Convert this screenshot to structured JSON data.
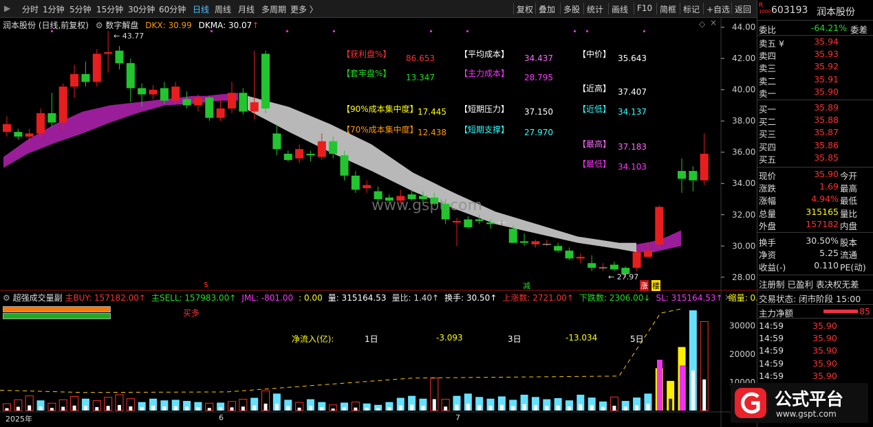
{
  "toolbar": {
    "left": [
      "分时",
      "1分钟",
      "5分钟",
      "15分钟",
      "30分钟",
      "60分钟",
      "日线",
      "周线",
      "月线",
      "多周期",
      "更多 〉"
    ],
    "active_index": 6,
    "right": [
      "复权",
      "叠加",
      "多股",
      "统计",
      "画线",
      "F10",
      "简框",
      "标记",
      "+自选",
      "返回"
    ]
  },
  "main": {
    "stock_title": "润本股份 (日线,前复权)",
    "indicator_name": "数字解盘",
    "dkx_label": "DKX: 30.99",
    "dkma_label": "DKMA: 30.07",
    "high_marker": "43.77",
    "low_marker": "27.97",
    "watermark": "www.gspt.com",
    "price_axis": [
      "44.00",
      "42.00",
      "40.00",
      "38.00",
      "36.00",
      "34.00",
      "32.00",
      "30.00",
      "28.00"
    ],
    "price_range": [
      27.2,
      44.6
    ],
    "tags": {
      "dollar": "$",
      "jian": "减",
      "zhang": "涨",
      "lou": "楼"
    },
    "info": [
      {
        "label": "【获利盘%】",
        "value": "86.653",
        "lc": "#ff3030",
        "vc": "#ff3030"
      },
      {
        "label": "【套牢盘%】",
        "value": "13.347",
        "lc": "#22dd22",
        "vc": "#22dd22"
      },
      {
        "label": "【90%成本集中度】",
        "value": "17.445",
        "lc": "#ffff00",
        "vc": "#ffff00"
      },
      {
        "label": "【70%成本集中度】",
        "value": "12.438",
        "lc": "#ff9900",
        "vc": "#ff9900"
      },
      {
        "label": "【平均成本】",
        "value": "34.437",
        "lc": "#ffffff",
        "vc": "#ff66ff"
      },
      {
        "label": "【主力成本】",
        "value": "28.795",
        "lc": "#ff33ff",
        "vc": "#ff33ff"
      },
      {
        "label": "【短期压力】",
        "value": "37.150",
        "lc": "#ffffff",
        "vc": "#ffffff"
      },
      {
        "label": "【短期支撑】",
        "value": "27.970",
        "lc": "#33ffff",
        "vc": "#33ffff"
      },
      {
        "label": "【中价】",
        "value": "35.643",
        "lc": "#ffffff",
        "vc": "#ffffff"
      },
      {
        "label": "【近高】",
        "value": "37.407",
        "lc": "#ffffff",
        "vc": "#ffffff"
      },
      {
        "label": "【近低】",
        "value": "34.137",
        "lc": "#33ffff",
        "vc": "#33ffff"
      },
      {
        "label": "【最高】",
        "value": "37.183",
        "lc": "#ff66ff",
        "vc": "#ff66ff"
      },
      {
        "label": "【最低】",
        "value": "34.103",
        "lc": "#ff33ff",
        "vc": "#ff33ff"
      }
    ]
  },
  "volume": {
    "indicator_name": "超强成交量副",
    "header": [
      {
        "text": "主BUY: 157182.00↑",
        "color": "#ff3030"
      },
      {
        "text": "主SELL: 157983.00↑",
        "color": "#22dd22"
      },
      {
        "text": "JML: -801.00",
        "color": "#ff33ff"
      },
      {
        "text": ": 0.00",
        "color": "#ffff00"
      },
      {
        "text": "量: 315164.53",
        "color": "#ffffff"
      },
      {
        "text": "量比: 1.40↑",
        "color": "#dddddd"
      },
      {
        "text": "换手: 30.50↑",
        "color": "#ffffff"
      },
      {
        "text": "上涨数: 2721.00↑",
        "color": "#ff3030"
      },
      {
        "text": "下跌数: 2306.00↓",
        "color": "#22dd22"
      },
      {
        "text": "SL: 315164.53↑",
        "color": "#ff33ff"
      },
      {
        "text": "缩量: 0.0",
        "color": "#ffff00"
      }
    ],
    "buy_more": "买多",
    "netflow_label": "净流入(亿):",
    "netflow": [
      {
        "period": "1日",
        "value": "-3.093"
      },
      {
        "period": "3日",
        "value": "-13.034"
      },
      {
        "period": "5日",
        "value": ""
      }
    ],
    "axis": [
      "30000",
      "20000",
      "10000"
    ],
    "range": [
      0,
      36000
    ]
  },
  "dates": [
    "2025年",
    "6",
    "7"
  ],
  "chart_data": {
    "type": "candlestick",
    "ohlc": [
      [
        37.3,
        38.3,
        37.0,
        37.8
      ],
      [
        37.3,
        37.5,
        36.8,
        37.0
      ],
      [
        37.0,
        37.5,
        36.5,
        37.2
      ],
      [
        37.2,
        38.8,
        36.9,
        38.5
      ],
      [
        38.5,
        39.8,
        37.6,
        37.9
      ],
      [
        37.9,
        40.4,
        37.4,
        40.2
      ],
      [
        40.2,
        41.6,
        39.5,
        41.0
      ],
      [
        41.0,
        41.8,
        40.2,
        40.5
      ],
      [
        40.5,
        42.6,
        40.2,
        42.3
      ],
      [
        42.3,
        43.77,
        41.1,
        42.4
      ],
      [
        42.5,
        42.8,
        41.3,
        41.7
      ],
      [
        41.7,
        42.0,
        39.2,
        40.1
      ],
      [
        40.1,
        40.4,
        38.9,
        39.7
      ],
      [
        39.7,
        40.3,
        39.4,
        40.0
      ],
      [
        40.1,
        40.5,
        39.1,
        39.3
      ],
      [
        39.3,
        40.5,
        39.1,
        40.2
      ],
      [
        39.4,
        39.9,
        38.8,
        39.0
      ],
      [
        39.0,
        39.7,
        38.6,
        39.5
      ],
      [
        39.5,
        39.6,
        38.0,
        38.2
      ],
      [
        38.2,
        39.5,
        38.0,
        38.8
      ],
      [
        38.8,
        40.5,
        38.5,
        39.8
      ],
      [
        39.8,
        40.1,
        38.4,
        38.6
      ],
      [
        38.6,
        42.5,
        38.1,
        39.2
      ],
      [
        42.3,
        42.5,
        38.5,
        38.8
      ],
      [
        37.2,
        37.8,
        35.8,
        36.2
      ],
      [
        35.9,
        36.1,
        35.4,
        35.5
      ],
      [
        35.6,
        36.5,
        35.3,
        36.2
      ],
      [
        35.9,
        36.1,
        35.4,
        35.8
      ],
      [
        35.7,
        37.2,
        35.5,
        36.7
      ],
      [
        36.7,
        37.0,
        35.6,
        35.9
      ],
      [
        35.8,
        36.1,
        34.2,
        34.5
      ],
      [
        34.5,
        34.8,
        33.4,
        33.6
      ],
      [
        33.7,
        34.2,
        33.4,
        33.9
      ],
      [
        33.5,
        33.8,
        32.8,
        33.0
      ],
      [
        33.1,
        33.3,
        32.8,
        32.9
      ],
      [
        32.9,
        33.6,
        32.7,
        33.2
      ],
      [
        33.3,
        33.6,
        32.9,
        33.0
      ],
      [
        33.2,
        33.5,
        32.7,
        33.0
      ],
      [
        33.1,
        33.4,
        32.6,
        32.7
      ],
      [
        32.7,
        33.0,
        31.4,
        31.7
      ],
      [
        31.5,
        31.8,
        30.0,
        31.6
      ],
      [
        31.7,
        31.9,
        31.1,
        31.2
      ],
      [
        31.7,
        32.0,
        31.4,
        31.6
      ],
      [
        31.5,
        31.7,
        31.1,
        31.4
      ],
      [
        31.5,
        31.6,
        31.3,
        31.5
      ],
      [
        31.1,
        31.3,
        30.2,
        30.2
      ],
      [
        30.3,
        30.8,
        30.0,
        30.2
      ],
      [
        30.1,
        30.4,
        29.9,
        30.3
      ],
      [
        30.1,
        30.4,
        30.0,
        30.1
      ],
      [
        30.0,
        30.2,
        29.6,
        29.7
      ],
      [
        29.7,
        29.9,
        29.1,
        29.2
      ],
      [
        29.2,
        29.5,
        28.9,
        29.3
      ],
      [
        28.9,
        29.4,
        28.4,
        28.6
      ],
      [
        28.6,
        28.9,
        28.4,
        28.6
      ],
      [
        28.8,
        29.0,
        28.4,
        28.5
      ],
      [
        28.6,
        28.7,
        27.97,
        28.2
      ],
      [
        28.6,
        29.8,
        28.4,
        29.6
      ],
      [
        29.3,
        30.2,
        29.2,
        29.7
      ],
      [
        30.1,
        32.6,
        29.9,
        32.5
      ],
      [
        0,
        0,
        0,
        0
      ],
      [
        34.8,
        35.6,
        33.4,
        34.3
      ],
      [
        34.8,
        35.1,
        33.5,
        34.2
      ],
      [
        34.2,
        37.2,
        33.9,
        35.9
      ]
    ],
    "band_upper": [
      [
        5,
        35.7
      ],
      [
        40,
        36.8
      ],
      [
        80,
        37.8
      ],
      [
        120,
        38.6
      ],
      [
        160,
        39.0
      ],
      [
        200,
        39.2
      ],
      [
        240,
        39.4
      ],
      [
        280,
        39.6
      ],
      [
        300,
        39.6
      ],
      [
        320,
        39.7
      ],
      [
        346,
        39.8
      ]
    ],
    "band_lower": [
      [
        346,
        39.3
      ],
      [
        320,
        39.3
      ],
      [
        300,
        39.2
      ],
      [
        280,
        39.1
      ],
      [
        240,
        39.0
      ],
      [
        200,
        38.5
      ],
      [
        160,
        37.9
      ],
      [
        120,
        37.2
      ],
      [
        80,
        36.6
      ],
      [
        40,
        35.9
      ],
      [
        5,
        35.0
      ]
    ],
    "gray_upper": [
      [
        360,
        39.6
      ],
      [
        420,
        38.9
      ],
      [
        480,
        37.8
      ],
      [
        540,
        36.5
      ],
      [
        600,
        34.7
      ],
      [
        660,
        33.4
      ],
      [
        720,
        32.2
      ],
      [
        780,
        31.4
      ],
      [
        840,
        30.6
      ],
      [
        900,
        30.2
      ],
      [
        925,
        30.2
      ]
    ],
    "gray_lower": [
      [
        925,
        29.6
      ],
      [
        900,
        29.8
      ],
      [
        840,
        30.2
      ],
      [
        780,
        30.8
      ],
      [
        720,
        31.4
      ],
      [
        660,
        32.4
      ],
      [
        600,
        33.5
      ],
      [
        540,
        34.8
      ],
      [
        480,
        36.0
      ],
      [
        420,
        37.3
      ],
      [
        360,
        38.7
      ]
    ],
    "magenta_tail_upper": [
      [
        925,
        30.1
      ],
      [
        950,
        30.3
      ],
      [
        970,
        30.6
      ],
      [
        990,
        31.0
      ]
    ],
    "magenta_tail_lower": [
      [
        990,
        30.0
      ],
      [
        970,
        29.8
      ],
      [
        950,
        29.6
      ],
      [
        925,
        29.6
      ]
    ],
    "volumes": [
      [
        2400,
        "r"
      ],
      [
        3800,
        "r"
      ],
      [
        5200,
        "r"
      ],
      [
        3600,
        "c"
      ],
      [
        2600,
        "r"
      ],
      [
        3800,
        "r"
      ],
      [
        5000,
        "r"
      ],
      [
        4200,
        "c"
      ],
      [
        3500,
        "r"
      ],
      [
        4700,
        "r"
      ],
      [
        5600,
        "r"
      ],
      [
        4200,
        "r"
      ],
      [
        3000,
        "c"
      ],
      [
        4200,
        "c"
      ],
      [
        3600,
        "c"
      ],
      [
        3800,
        "c"
      ],
      [
        3400,
        "c"
      ],
      [
        3000,
        "c"
      ],
      [
        2600,
        "r"
      ],
      [
        2800,
        "c"
      ],
      [
        3200,
        "r"
      ],
      [
        4000,
        "r"
      ],
      [
        4500,
        "c"
      ],
      [
        7000,
        "r"
      ],
      [
        6000,
        "c"
      ],
      [
        3800,
        "c"
      ],
      [
        2900,
        "r"
      ],
      [
        4000,
        "c"
      ],
      [
        3000,
        "c"
      ],
      [
        2000,
        "r"
      ],
      [
        2800,
        "c"
      ],
      [
        3000,
        "r"
      ],
      [
        2500,
        "c"
      ],
      [
        2000,
        "c"
      ],
      [
        3000,
        "c"
      ],
      [
        4500,
        "c"
      ],
      [
        5200,
        "c"
      ],
      [
        4200,
        "c"
      ],
      [
        11500,
        "r"
      ],
      [
        4000,
        "r"
      ],
      [
        5200,
        "c"
      ],
      [
        6000,
        "c"
      ],
      [
        4800,
        "c"
      ],
      [
        4200,
        "c"
      ],
      [
        5000,
        "c"
      ],
      [
        3800,
        "c"
      ],
      [
        5600,
        "c"
      ],
      [
        4800,
        "c"
      ],
      [
        4000,
        "c"
      ],
      [
        4400,
        "c"
      ],
      [
        3600,
        "c"
      ],
      [
        5600,
        "c"
      ],
      [
        4600,
        "c"
      ],
      [
        3200,
        "c"
      ],
      [
        4800,
        "r"
      ],
      [
        3400,
        "c"
      ],
      [
        4600,
        "c"
      ],
      [
        6000,
        "c"
      ],
      [
        15000,
        "y"
      ],
      [
        10500,
        "y"
      ],
      [
        22500,
        "y"
      ],
      [
        35500,
        "c"
      ],
      [
        31500,
        "r"
      ]
    ],
    "dashes": [
      [
        0,
        7200
      ],
      [
        120,
        6400
      ],
      [
        330,
        6600
      ],
      [
        600,
        11500
      ],
      [
        900,
        12200
      ],
      [
        960,
        34500
      ],
      [
        990,
        36000
      ]
    ]
  }
}
